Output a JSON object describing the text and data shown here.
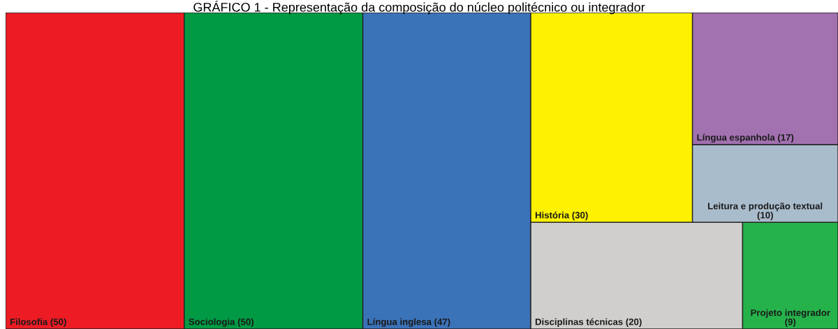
{
  "chart_data": {
    "type": "other",
    "title": "GRÁFICO 1 - Representação da composição do núcleo politécnico ou integrador",
    "categories": [
      "Filosofia",
      "Sociologia",
      "Língua inglesa",
      "Disciplinas técnicas",
      "Projeto integrador",
      "História",
      "Leitura e produção textual",
      "Língua espanhola"
    ],
    "values": [
      50,
      50,
      47,
      20,
      9,
      30,
      10,
      17
    ],
    "value_labels": [
      "(50)",
      "(50)",
      "(47)",
      "(20)",
      "(9)",
      "(30)",
      "(10)",
      "(17)"
    ],
    "colors": [
      "#ed1c24",
      "#009a44",
      "#3b73b9",
      "#d0cfcd",
      "#26b24b",
      "#fff200",
      "#a9bccc",
      "#a271b0"
    ]
  }
}
